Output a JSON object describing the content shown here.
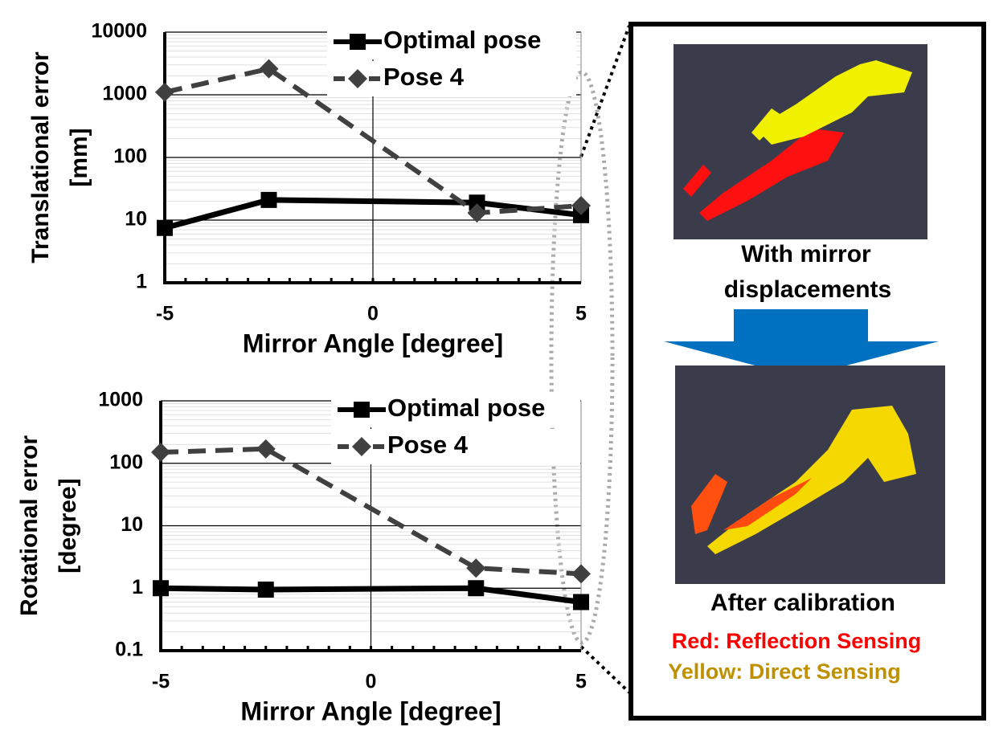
{
  "chart_data": [
    {
      "type": "line",
      "x_label": "Mirror Angle [degree]",
      "y_label": [
        "Translational error",
        "[mm]"
      ],
      "x": [
        -5,
        -2.5,
        2.5,
        5
      ],
      "xlim": [
        -5,
        5
      ],
      "xticks": [
        -5,
        0,
        5
      ],
      "ylim": [
        1,
        10000
      ],
      "yticks": [
        1,
        10,
        100,
        1000,
        10000
      ],
      "log_y": true,
      "grid": true,
      "legend": "top",
      "series": [
        {
          "name": "Optimal pose",
          "color": "#000000",
          "marker": "square",
          "dashed": false,
          "values": [
            7.5,
            21,
            19,
            12
          ]
        },
        {
          "name": "Pose 4",
          "color": "#404040",
          "marker": "diamond",
          "dashed": true,
          "values": [
            1100,
            2600,
            13,
            17
          ]
        }
      ]
    },
    {
      "type": "line",
      "x_label": "Mirror Angle [degree]",
      "y_label": [
        "Rotational error",
        "[degree]"
      ],
      "x": [
        -5,
        -2.5,
        2.5,
        5
      ],
      "xlim": [
        -5,
        5
      ],
      "xticks": [
        -5,
        0,
        5
      ],
      "ylim": [
        0.1,
        1000
      ],
      "yticks": [
        0.1,
        1,
        10,
        100,
        1000
      ],
      "log_y": true,
      "grid": true,
      "legend": "top",
      "series": [
        {
          "name": "Optimal pose",
          "color": "#000000",
          "marker": "square",
          "dashed": false,
          "values": [
            1.0,
            0.95,
            1.0,
            0.6
          ]
        },
        {
          "name": "Pose 4",
          "color": "#404040",
          "marker": "diamond",
          "dashed": true,
          "values": [
            150,
            170,
            2.1,
            1.7
          ]
        }
      ]
    }
  ],
  "panel": {
    "top_caption": [
      "With mirror",
      "displacements"
    ],
    "bottom_caption": "After calibration",
    "legend": [
      "Red: Reflection Sensing",
      "Yellow: Direct Sensing"
    ]
  }
}
